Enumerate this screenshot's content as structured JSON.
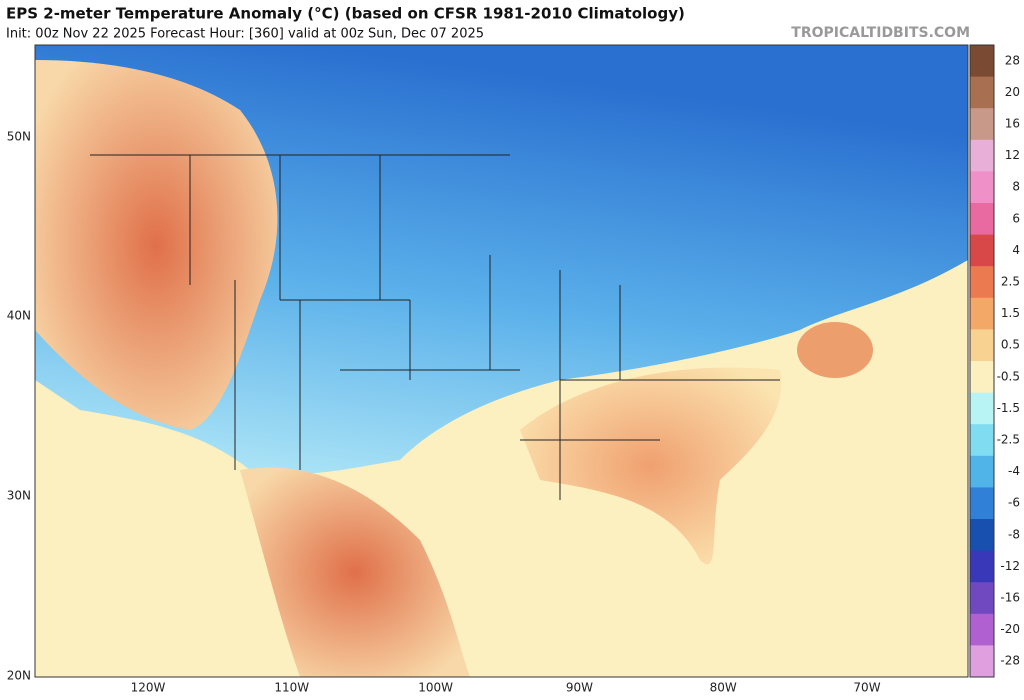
{
  "header": {
    "title": "EPS 2-meter Temperature Anomaly (°C) (based on CFSR 1981-2010 Climatology)",
    "subtitle": "Init: 00z Nov 22 2025   Forecast Hour: [360]   valid at 00z Sun, Dec 07 2025",
    "watermark": "TROPICALTIDBITS.COM"
  },
  "map": {
    "lat_labels": [
      "50N",
      "40N",
      "30N",
      "20N"
    ],
    "lon_labels": [
      "120W",
      "110W",
      "100W",
      "90W",
      "80W",
      "70W"
    ]
  },
  "colorbar": {
    "levels": [
      28,
      20,
      16,
      12,
      8,
      6,
      4,
      2.5,
      1.5,
      0.5,
      -0.5,
      -1.5,
      -2.5,
      -4,
      -6,
      -8,
      -12,
      -16,
      -20,
      -28
    ],
    "colors": [
      "#7a4a32",
      "#a87050",
      "#c89888",
      "#e8b0d8",
      "#f090c8",
      "#e86aa0",
      "#d84848",
      "#ec7a50",
      "#f4a868",
      "#f8d290",
      "#fdf0c0",
      "#b8f4f4",
      "#80dcf0",
      "#50b4e8",
      "#3080d8",
      "#1850b0",
      "#3838b8",
      "#7048c0",
      "#b060d0",
      "#e0a0e0"
    ]
  }
}
